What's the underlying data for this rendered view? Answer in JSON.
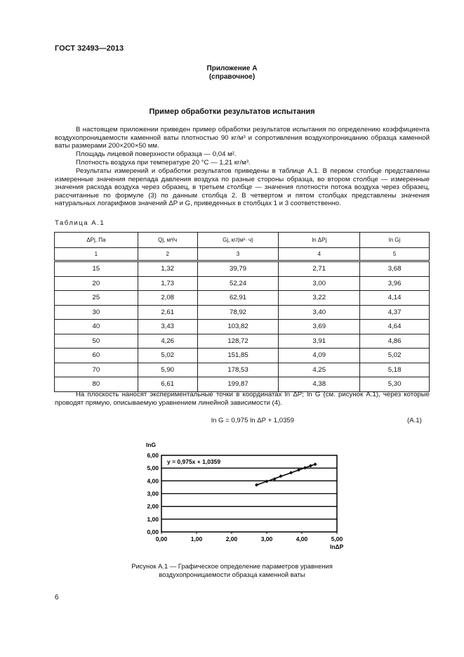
{
  "header": {
    "standard": "ГОСТ 32493—2013"
  },
  "appendix": {
    "title": "Приложение А",
    "subtitle": "(справочное)"
  },
  "section_title": "Пример обработки результатов испытания",
  "paragraphs": [
    "В настоящем приложении приведен пример обработки результатов испытания по определению коэффициента воздухопроницаемости каменной ваты плотностью 90 кг/м³ и сопротивления воздухопроницанию образца каменной ваты размерами 200×200×50 мм.",
    "Площадь лицевой поверхности образца — 0,04 м².",
    "Плотность воздуха при температуре 20 °С — 1,21 кг/м³.",
    "Результаты измерений и обработки результатов приведены в таблице А.1. В первом столбце представлены измеренные значения перепада давления воздуха по разные стороны образца, во втором столбце — измеренные значения расхода воздуха через образец, в третьем столбце — значения плотности потока воздуха через образец, рассчитанные по формуле (3) по данным столбца 2. В четвертом и пятом столбцах представлены значения натуральных логарифмов значений ΔP и G, приведенных в столбцах 1 и 3 соответственно."
  ],
  "table": {
    "caption": "Таблица А.1",
    "headers": [
      "ΔPj, Па",
      "Qj, м³/ч",
      "Gj, кг/(м²· ч)",
      "ln ΔPj",
      "ln Gj"
    ],
    "col_numbers": [
      "1",
      "2",
      "3",
      "4",
      "5"
    ],
    "rows": [
      [
        "15",
        "1,32",
        "39,79",
        "2,71",
        "3,68"
      ],
      [
        "20",
        "1,73",
        "52,24",
        "3,00",
        "3,96"
      ],
      [
        "25",
        "2,08",
        "62,91",
        "3,22",
        "4,14"
      ],
      [
        "30",
        "2,61",
        "78,92",
        "3,40",
        "4,37"
      ],
      [
        "40",
        "3,43",
        "103,82",
        "3,69",
        "4,64"
      ],
      [
        "50",
        "4,26",
        "128,72",
        "3,91",
        "4,86"
      ],
      [
        "60",
        "5,02",
        "151,85",
        "4,09",
        "5,02"
      ],
      [
        "70",
        "5,90",
        "178,53",
        "4,25",
        "5,18"
      ],
      [
        "80",
        "6,61",
        "199,87",
        "4,38",
        "5,30"
      ]
    ]
  },
  "after_table": "На плоскость наносят экспериментальные точки в координатах ln ΔP; ln G (см. рисунок А.1), через которые проводят прямую, описываемую уравнением линейной зависимости (4).",
  "equation": {
    "text": "ln G = 0,975 ln ΔP + 1,0359",
    "number": "(А.1)"
  },
  "chart_data": {
    "type": "scatter",
    "xlabel": "lnΔP",
    "ylabel": "lnG",
    "xlim": [
      0,
      5
    ],
    "ylim": [
      0,
      6
    ],
    "x_ticks": [
      "0,00",
      "1,00",
      "2,00",
      "3,00",
      "4,00",
      "5,00"
    ],
    "y_ticks": [
      "0,00",
      "1,00",
      "2,00",
      "3,00",
      "4,00",
      "5,00",
      "6,00"
    ],
    "grid": "horizontal",
    "annotation": "y = 0,975x + 1,0359",
    "trendline": {
      "slope": 0.975,
      "intercept": 1.0359
    },
    "x": [
      2.71,
      3.0,
      3.22,
      3.4,
      3.69,
      3.91,
      4.09,
      4.25,
      4.38
    ],
    "y": [
      3.68,
      3.96,
      4.14,
      4.37,
      4.64,
      4.86,
      5.02,
      5.18,
      5.3
    ]
  },
  "figure_caption": [
    "Рисунок А.1 — Графическое определение параметров уравнения",
    "воздухопроницаемости образца каменной ваты"
  ],
  "page_number": "6"
}
